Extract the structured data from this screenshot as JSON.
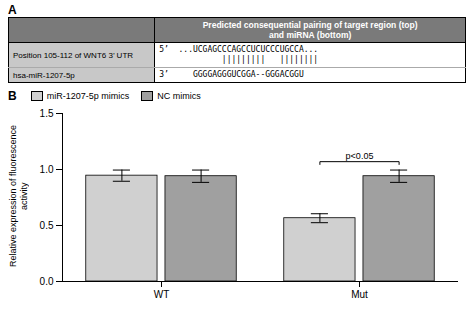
{
  "chart_data": [
    {
      "type": "table",
      "title": "A",
      "header": "Predicted consequential pairing of target region (top)\nand miRNA (bottom)",
      "rows": [
        {
          "label": "Position 105-112 of WNT6 3’ UTR",
          "lines": [
            "5’  ...UCGAGCCCAGCCUCUCCCUGCCA...",
            "             |||||||||   ||||||||"
          ]
        },
        {
          "label": "hsa-miR-1207-5p",
          "lines": [
            "3’     GGGGAGGGUCGGA--GGGACGGU"
          ]
        }
      ],
      "colors": [
        "#7a7a7a",
        "#c8c8c8",
        "#ffffff",
        "#ffffff"
      ]
    },
    {
      "type": "bar",
      "title": "B",
      "categories": [
        "WT",
        "Mut"
      ],
      "series": [
        {
          "name": "miR-1207-5p mimics",
          "color": "#d0d0d0",
          "values": [
            0.945,
            0.565
          ],
          "errors": [
            0.05,
            0.04
          ]
        },
        {
          "name": "NC mimics",
          "color": "#a0a0a0",
          "values": [
            0.94,
            0.94
          ],
          "errors": [
            0.055,
            0.055
          ]
        }
      ],
      "ylabel": "Relative expression of fluorescence activity",
      "ylim": [
        0.0,
        1.5
      ],
      "yticks": [
        {
          "value": 0.0,
          "label": "0.0"
        },
        0.5,
        {
          "value": 1.0,
          "label": "1.0"
        },
        1.5
      ],
      "annotations": [
        {
          "text": "p<0.05",
          "category": "Mut",
          "y": 1.07
        }
      ],
      "legend": "upper left",
      "grid": false
    }
  ]
}
